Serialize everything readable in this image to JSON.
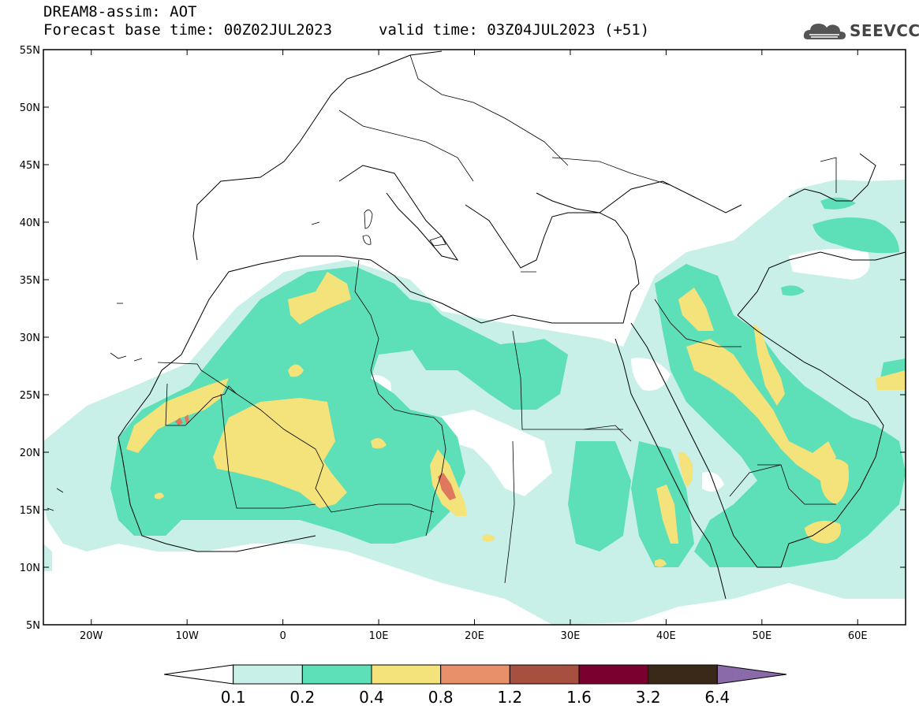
{
  "header": {
    "title": "DREAM8-assim: AOT",
    "base_time": "Forecast base time: 00Z02JUL2023",
    "valid_time": "valid time: 03Z04JUL2023 (+51)"
  },
  "logo": {
    "text": "SEEVCCC",
    "icon": "cloud-icon"
  },
  "map": {
    "lat_range": [
      5,
      55
    ],
    "lon_range": [
      -25,
      65
    ],
    "lat_labels": [
      "5N",
      "10N",
      "15N",
      "20N",
      "25N",
      "30N",
      "35N",
      "40N",
      "45N",
      "50N",
      "55N"
    ],
    "lon_ticks": [
      -20,
      -10,
      0,
      10,
      20,
      30,
      40,
      50,
      60
    ],
    "lon_labels": [
      "20W",
      "10W",
      "0",
      "10E",
      "20E",
      "30E",
      "40E",
      "50E",
      "60E"
    ]
  },
  "colorbar": {
    "labels": [
      "0.1",
      "0.2",
      "0.4",
      "0.8",
      "1.2",
      "1.6",
      "3.2",
      "6.4"
    ],
    "colors": [
      "#ffffff",
      "#c8f0e8",
      "#5ddfb7",
      "#f4e27a",
      "#e8906a",
      "#a85040",
      "#7a0030",
      "#3a2818",
      "#8a6aa8"
    ]
  },
  "colors": {
    "c1": "#c8f0e8",
    "c2": "#5ddfb7",
    "c3": "#f4e27a",
    "c4": "#e0785e",
    "outline": "#000000"
  }
}
